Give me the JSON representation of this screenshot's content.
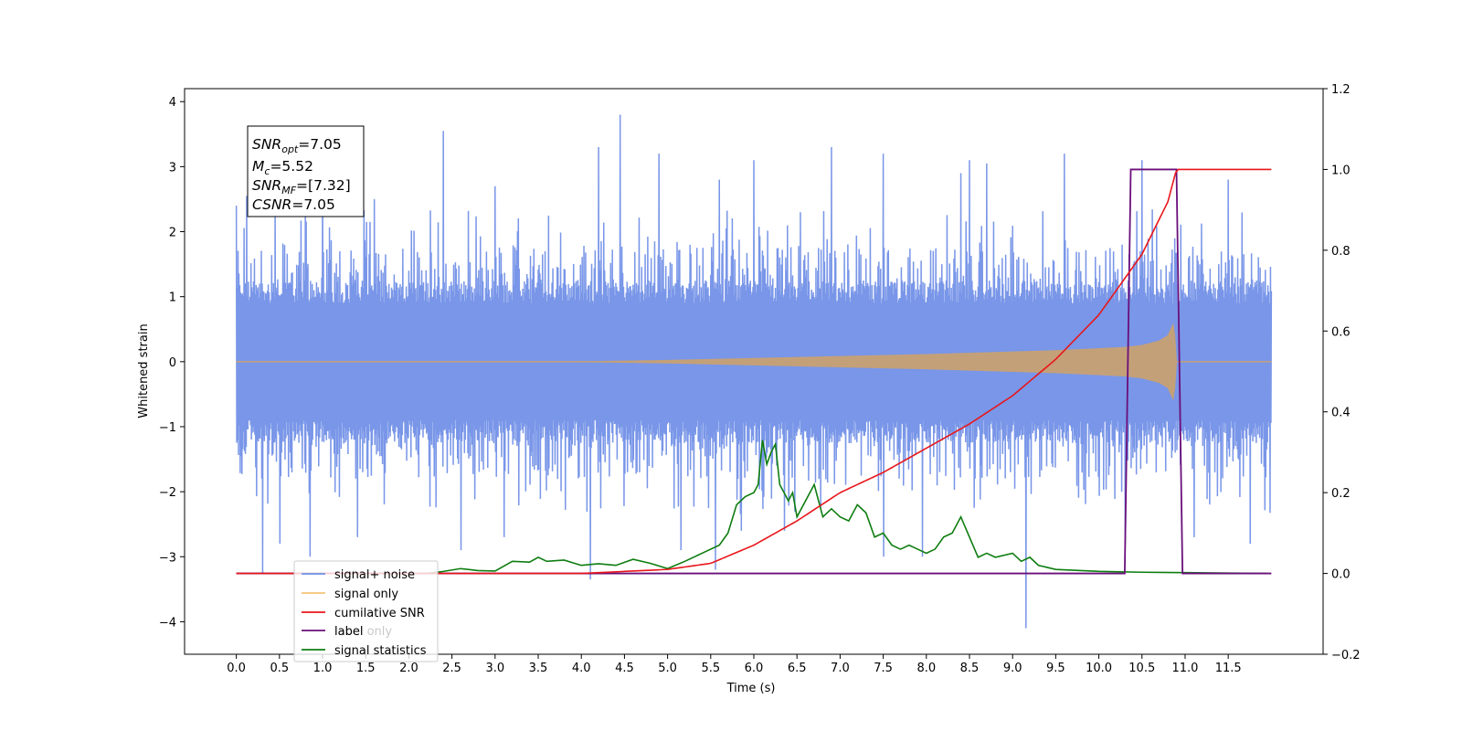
{
  "chart_data": {
    "type": "line",
    "xlabel": "Time (s)",
    "ylabel": "Whitened strain",
    "xlim": [
      -0.6,
      12.6
    ],
    "ylim_left": [
      -4.5,
      4.2
    ],
    "ylim_right": [
      -0.2,
      1.2
    ],
    "x_ticks": [
      "0.0",
      "0.5",
      "1.0",
      "1.5",
      "2.0",
      "2.5",
      "3.0",
      "3.5",
      "4.0",
      "4.5",
      "5.0",
      "5.5",
      "6.0",
      "6.5",
      "7.0",
      "7.5",
      "8.0",
      "8.5",
      "9.0",
      "9.5",
      "10.0",
      "10.5",
      "11.0",
      "11.5"
    ],
    "y_ticks_left": [
      "4",
      "3",
      "2",
      "1",
      "0",
      "−1",
      "−2",
      "−3",
      "−4"
    ],
    "y_ticks_right": [
      "1.2",
      "1.0",
      "0.8",
      "0.6",
      "0.4",
      "0.2",
      "0.0",
      "−0.2"
    ],
    "annotation": {
      "lines": [
        {
          "base": "SNR",
          "sub": "opt",
          "rest": "=7.05"
        },
        {
          "base": "M",
          "sub": "c",
          "rest": "=5.52"
        },
        {
          "base": "SNR",
          "sub": "MF",
          "rest": "=[7.32]"
        },
        {
          "base": "CSNR",
          "sub": "",
          "rest": "=7.05"
        }
      ]
    },
    "legend": {
      "position": "lower-left",
      "entries": [
        {
          "label": "signal+ noise",
          "color": "#6f8fe6"
        },
        {
          "label": "signal only",
          "color": "#f5c27a"
        },
        {
          "label": "cumilative SNR",
          "color": "#e8161b"
        },
        {
          "label": "label",
          "color": "#6a0f7a"
        },
        {
          "label": "signal statistics",
          "color": "#0e7d10"
        }
      ],
      "hidden_overlap_label": "label only"
    },
    "series": [
      {
        "name": "signal+ noise",
        "axis": "left",
        "color": "#7996e8",
        "description": "noise band spanning x 0.0 to 12.0",
        "noise_band": {
          "x": [
            0.0,
            12.0
          ],
          "typical_upper": 1.9,
          "typical_lower": -1.9
        },
        "spikes_up": [
          [
            0.0,
            2.4
          ],
          [
            0.12,
            2.55
          ],
          [
            0.45,
            2.5
          ],
          [
            1.0,
            3.05
          ],
          [
            1.6,
            2.5
          ],
          [
            2.4,
            3.55
          ],
          [
            3.0,
            2.7
          ],
          [
            4.2,
            3.3
          ],
          [
            4.45,
            3.8
          ],
          [
            4.9,
            3.2
          ],
          [
            5.6,
            2.8
          ],
          [
            6.0,
            3.1
          ],
          [
            6.9,
            3.3
          ],
          [
            7.5,
            3.2
          ],
          [
            8.4,
            2.9
          ],
          [
            8.5,
            3.1
          ],
          [
            8.7,
            3.05
          ],
          [
            9.6,
            3.2
          ],
          [
            10.5,
            3.1
          ],
          [
            11.5,
            2.8
          ]
        ],
        "spikes_down": [
          [
            0.3,
            -3.25
          ],
          [
            0.5,
            -2.8
          ],
          [
            0.85,
            -3.0
          ],
          [
            1.4,
            -2.7
          ],
          [
            2.6,
            -2.9
          ],
          [
            3.1,
            -2.7
          ],
          [
            4.1,
            -3.35
          ],
          [
            5.15,
            -2.9
          ],
          [
            5.55,
            -3.2
          ],
          [
            5.85,
            -2.6
          ],
          [
            6.35,
            -2.6
          ],
          [
            7.5,
            -3.0
          ],
          [
            7.95,
            -3.0
          ],
          [
            9.15,
            -4.1
          ],
          [
            10.3,
            -2.8
          ],
          [
            11.1,
            -2.7
          ],
          [
            11.75,
            -2.8
          ]
        ]
      },
      {
        "name": "signal only",
        "axis": "left",
        "color": "#c4a079",
        "description": "chirp envelope (amplitude vs time)",
        "x": [
          0.0,
          4.0,
          5.0,
          6.0,
          7.0,
          8.0,
          9.0,
          9.5,
          10.0,
          10.3,
          10.5,
          10.7,
          10.8,
          10.87,
          10.9,
          12.0
        ],
        "amplitude": [
          0.0,
          0.0,
          0.02,
          0.05,
          0.08,
          0.11,
          0.15,
          0.17,
          0.2,
          0.22,
          0.25,
          0.32,
          0.4,
          0.6,
          0.0,
          0.0
        ]
      },
      {
        "name": "cumilative SNR",
        "axis": "right",
        "color": "#e8161b",
        "x": [
          0.0,
          4.0,
          5.0,
          5.5,
          6.0,
          6.5,
          7.0,
          7.5,
          8.0,
          8.5,
          9.0,
          9.5,
          10.0,
          10.5,
          10.8,
          10.9,
          12.0
        ],
        "y": [
          0.0,
          0.0,
          0.01,
          0.025,
          0.07,
          0.13,
          0.2,
          0.25,
          0.31,
          0.37,
          0.44,
          0.53,
          0.64,
          0.79,
          0.92,
          1.0,
          1.0
        ]
      },
      {
        "name": "label",
        "axis": "right",
        "color": "#6a0f7a",
        "x": [
          0.0,
          10.3,
          10.37,
          10.9,
          10.97,
          12.0
        ],
        "y": [
          0.0,
          0.0,
          1.0,
          1.0,
          0.0,
          0.0
        ]
      },
      {
        "name": "signal statistics",
        "axis": "right",
        "color": "#0e7d10",
        "x": [
          0.0,
          2.0,
          2.2,
          2.4,
          2.6,
          2.8,
          3.0,
          3.2,
          3.4,
          3.5,
          3.6,
          3.8,
          4.0,
          4.2,
          4.4,
          4.6,
          4.8,
          5.0,
          5.2,
          5.4,
          5.6,
          5.7,
          5.8,
          5.9,
          6.0,
          6.05,
          6.1,
          6.15,
          6.2,
          6.25,
          6.3,
          6.35,
          6.4,
          6.45,
          6.5,
          6.6,
          6.7,
          6.75,
          6.8,
          6.9,
          7.0,
          7.1,
          7.2,
          7.3,
          7.4,
          7.5,
          7.6,
          7.7,
          7.8,
          7.9,
          8.0,
          8.1,
          8.2,
          8.3,
          8.4,
          8.5,
          8.6,
          8.7,
          8.8,
          9.0,
          9.1,
          9.2,
          9.3,
          9.5,
          10.0,
          10.5,
          11.0,
          11.5,
          11.95
        ],
        "y": [
          0.0,
          0.0,
          0.0,
          0.005,
          0.012,
          0.007,
          0.006,
          0.03,
          0.028,
          0.04,
          0.03,
          0.033,
          0.02,
          0.024,
          0.02,
          0.035,
          0.025,
          0.012,
          0.03,
          0.05,
          0.07,
          0.1,
          0.17,
          0.19,
          0.2,
          0.22,
          0.33,
          0.27,
          0.3,
          0.32,
          0.22,
          0.2,
          0.18,
          0.2,
          0.14,
          0.18,
          0.22,
          0.18,
          0.14,
          0.16,
          0.14,
          0.13,
          0.17,
          0.15,
          0.09,
          0.1,
          0.07,
          0.06,
          0.07,
          0.06,
          0.05,
          0.06,
          0.09,
          0.1,
          0.14,
          0.09,
          0.04,
          0.05,
          0.04,
          0.05,
          0.03,
          0.04,
          0.02,
          0.01,
          0.005,
          0.003,
          0.002,
          0.001,
          0.0
        ]
      }
    ]
  }
}
